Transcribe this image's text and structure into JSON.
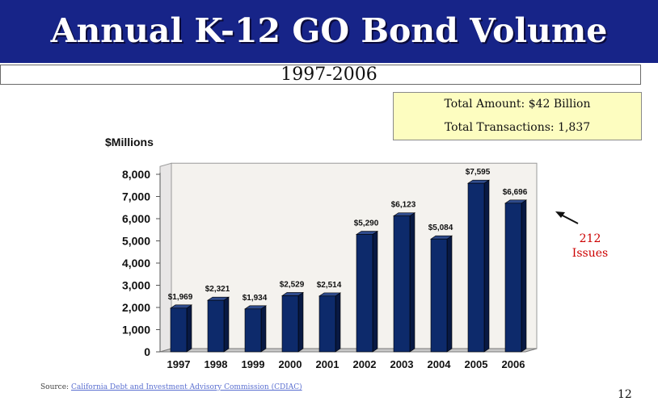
{
  "slide": {
    "title": "Annual K-12 GO Bond Volume",
    "subtitle": "1997-2006",
    "info_total_amount": "Total Amount: $42 Billion",
    "info_total_transactions": "Total Transactions: 1,837",
    "annotation_line1": "212",
    "annotation_line2": "Issues",
    "source_prefix": "Source: ",
    "source_link": "California Debt and Investment Advisory Commission (CDIAC)",
    "page_number": "12",
    "colors": {
      "title_bar": "#172488",
      "bar_front": "#0d2a6b",
      "info_box": "#fdfdc0",
      "annotation": "#cc0000"
    }
  },
  "chart_data": {
    "type": "bar",
    "ylabel": "$Millions",
    "categories": [
      "1997",
      "1998",
      "1999",
      "2000",
      "2001",
      "2002",
      "2003",
      "2004",
      "2005",
      "2006"
    ],
    "values": [
      1969,
      2321,
      1934,
      2529,
      2514,
      5290,
      6123,
      5084,
      7595,
      6696
    ],
    "data_labels": [
      "$1,969",
      "$2,321",
      "$1,934",
      "$2,529",
      "$2,514",
      "$5,290",
      "$6,123",
      "$5,084",
      "$7,595",
      "$6,696"
    ],
    "yticks": [
      0,
      1000,
      2000,
      3000,
      4000,
      5000,
      6000,
      7000,
      8000
    ],
    "ytick_labels": [
      "0",
      "1,000",
      "2,000",
      "3,000",
      "4,000",
      "5,000",
      "6,000",
      "7,000",
      "8,000"
    ],
    "ylim": [
      0,
      8500
    ],
    "grid": false,
    "style": "3d"
  }
}
